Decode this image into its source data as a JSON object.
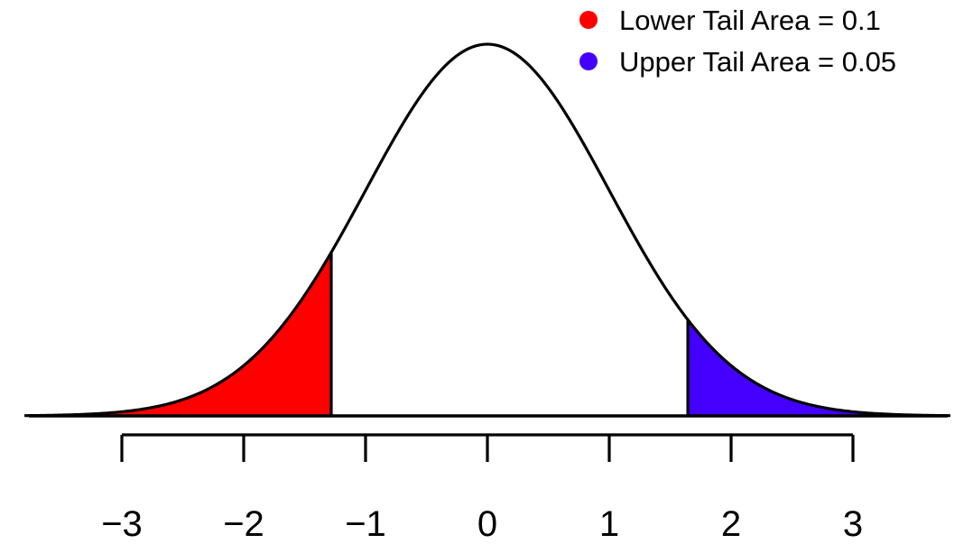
{
  "chart_data": {
    "type": "area",
    "distribution": "standard normal density",
    "xlim": [
      -3.8,
      3.8
    ],
    "x_ticks": [
      -3,
      -2,
      -1,
      0,
      1,
      2,
      3
    ],
    "x_tick_labels": [
      "−3",
      "−2",
      "−1",
      "0",
      "1",
      "2",
      "3"
    ],
    "lower_cutoff": -1.2816,
    "upper_cutoff": 1.6449,
    "series": [
      {
        "name": "Lower Tail Area = 0.1",
        "color": "#ff0000",
        "region": "lower_tail"
      },
      {
        "name": "Upper Tail Area = 0.05",
        "color": "#4400ff",
        "region": "upper_tail"
      }
    ],
    "legend": {
      "placement": "top-right",
      "items": [
        "Lower Tail Area = 0.1",
        "Upper Tail Area = 0.05"
      ]
    },
    "grid": false,
    "title": "",
    "xlabel": "",
    "ylabel": ""
  }
}
